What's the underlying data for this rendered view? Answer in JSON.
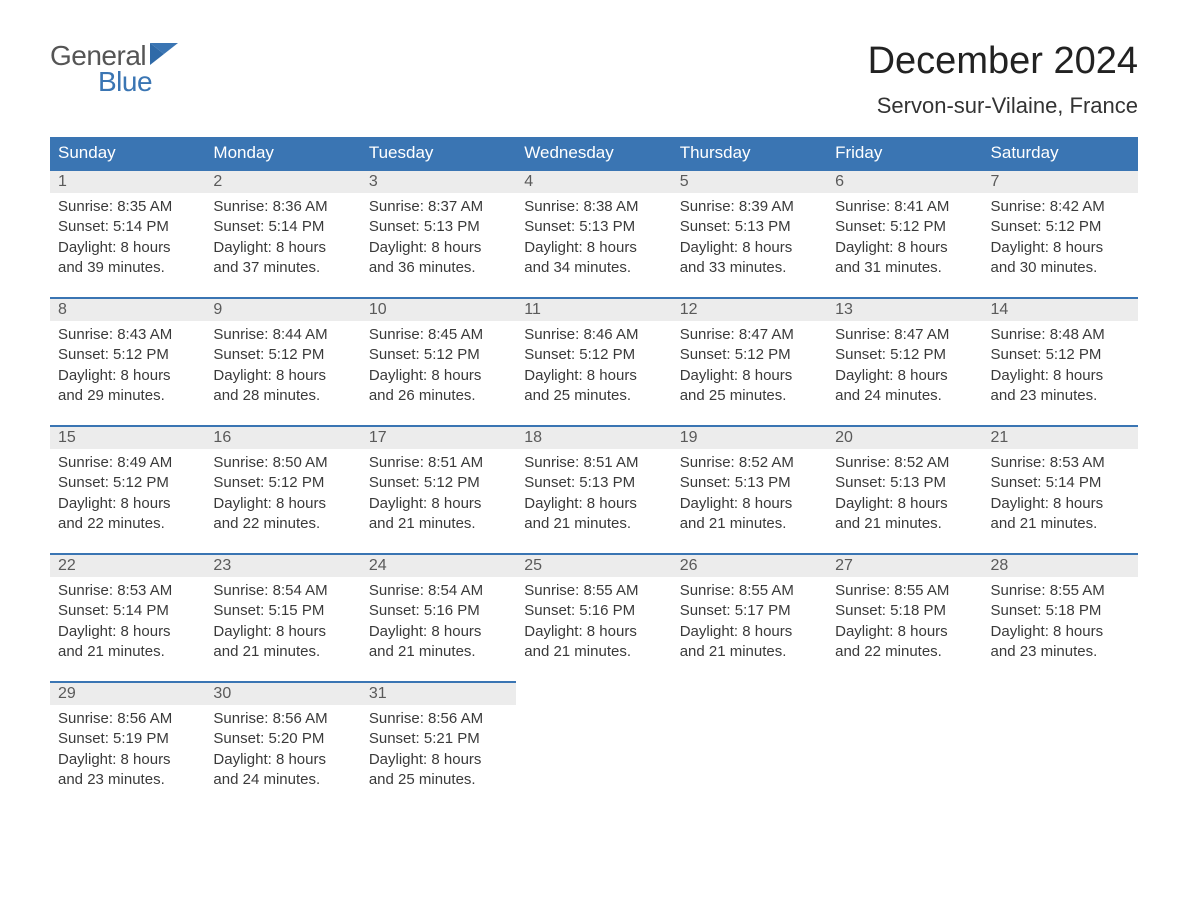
{
  "logo": {
    "line1": "General",
    "line2": "Blue",
    "icon_color": "#3a75b3"
  },
  "title": "December 2024",
  "location": "Servon-sur-Vilaine, France",
  "colors": {
    "header_bg": "#3a75b3",
    "header_text": "#ffffff",
    "daynum_bg": "#ececec",
    "daynum_text": "#5a5a5a",
    "body_text": "#3a3a3a",
    "row_divider": "#3a75b3",
    "page_bg": "#ffffff"
  },
  "typography": {
    "title_fontsize": 38,
    "location_fontsize": 22,
    "header_fontsize": 17,
    "daynum_fontsize": 16,
    "body_fontsize": 15,
    "font_family": "Arial"
  },
  "weekdays": [
    "Sunday",
    "Monday",
    "Tuesday",
    "Wednesday",
    "Thursday",
    "Friday",
    "Saturday"
  ],
  "weeks": [
    [
      {
        "num": "1",
        "sunrise": "8:35 AM",
        "sunset": "5:14 PM",
        "daylight": "8 hours and 39 minutes."
      },
      {
        "num": "2",
        "sunrise": "8:36 AM",
        "sunset": "5:14 PM",
        "daylight": "8 hours and 37 minutes."
      },
      {
        "num": "3",
        "sunrise": "8:37 AM",
        "sunset": "5:13 PM",
        "daylight": "8 hours and 36 minutes."
      },
      {
        "num": "4",
        "sunrise": "8:38 AM",
        "sunset": "5:13 PM",
        "daylight": "8 hours and 34 minutes."
      },
      {
        "num": "5",
        "sunrise": "8:39 AM",
        "sunset": "5:13 PM",
        "daylight": "8 hours and 33 minutes."
      },
      {
        "num": "6",
        "sunrise": "8:41 AM",
        "sunset": "5:12 PM",
        "daylight": "8 hours and 31 minutes."
      },
      {
        "num": "7",
        "sunrise": "8:42 AM",
        "sunset": "5:12 PM",
        "daylight": "8 hours and 30 minutes."
      }
    ],
    [
      {
        "num": "8",
        "sunrise": "8:43 AM",
        "sunset": "5:12 PM",
        "daylight": "8 hours and 29 minutes."
      },
      {
        "num": "9",
        "sunrise": "8:44 AM",
        "sunset": "5:12 PM",
        "daylight": "8 hours and 28 minutes."
      },
      {
        "num": "10",
        "sunrise": "8:45 AM",
        "sunset": "5:12 PM",
        "daylight": "8 hours and 26 minutes."
      },
      {
        "num": "11",
        "sunrise": "8:46 AM",
        "sunset": "5:12 PM",
        "daylight": "8 hours and 25 minutes."
      },
      {
        "num": "12",
        "sunrise": "8:47 AM",
        "sunset": "5:12 PM",
        "daylight": "8 hours and 25 minutes."
      },
      {
        "num": "13",
        "sunrise": "8:47 AM",
        "sunset": "5:12 PM",
        "daylight": "8 hours and 24 minutes."
      },
      {
        "num": "14",
        "sunrise": "8:48 AM",
        "sunset": "5:12 PM",
        "daylight": "8 hours and 23 minutes."
      }
    ],
    [
      {
        "num": "15",
        "sunrise": "8:49 AM",
        "sunset": "5:12 PM",
        "daylight": "8 hours and 22 minutes."
      },
      {
        "num": "16",
        "sunrise": "8:50 AM",
        "sunset": "5:12 PM",
        "daylight": "8 hours and 22 minutes."
      },
      {
        "num": "17",
        "sunrise": "8:51 AM",
        "sunset": "5:12 PM",
        "daylight": "8 hours and 21 minutes."
      },
      {
        "num": "18",
        "sunrise": "8:51 AM",
        "sunset": "5:13 PM",
        "daylight": "8 hours and 21 minutes."
      },
      {
        "num": "19",
        "sunrise": "8:52 AM",
        "sunset": "5:13 PM",
        "daylight": "8 hours and 21 minutes."
      },
      {
        "num": "20",
        "sunrise": "8:52 AM",
        "sunset": "5:13 PM",
        "daylight": "8 hours and 21 minutes."
      },
      {
        "num": "21",
        "sunrise": "8:53 AM",
        "sunset": "5:14 PM",
        "daylight": "8 hours and 21 minutes."
      }
    ],
    [
      {
        "num": "22",
        "sunrise": "8:53 AM",
        "sunset": "5:14 PM",
        "daylight": "8 hours and 21 minutes."
      },
      {
        "num": "23",
        "sunrise": "8:54 AM",
        "sunset": "5:15 PM",
        "daylight": "8 hours and 21 minutes."
      },
      {
        "num": "24",
        "sunrise": "8:54 AM",
        "sunset": "5:16 PM",
        "daylight": "8 hours and 21 minutes."
      },
      {
        "num": "25",
        "sunrise": "8:55 AM",
        "sunset": "5:16 PM",
        "daylight": "8 hours and 21 minutes."
      },
      {
        "num": "26",
        "sunrise": "8:55 AM",
        "sunset": "5:17 PM",
        "daylight": "8 hours and 21 minutes."
      },
      {
        "num": "27",
        "sunrise": "8:55 AM",
        "sunset": "5:18 PM",
        "daylight": "8 hours and 22 minutes."
      },
      {
        "num": "28",
        "sunrise": "8:55 AM",
        "sunset": "5:18 PM",
        "daylight": "8 hours and 23 minutes."
      }
    ],
    [
      {
        "num": "29",
        "sunrise": "8:56 AM",
        "sunset": "5:19 PM",
        "daylight": "8 hours and 23 minutes."
      },
      {
        "num": "30",
        "sunrise": "8:56 AM",
        "sunset": "5:20 PM",
        "daylight": "8 hours and 24 minutes."
      },
      {
        "num": "31",
        "sunrise": "8:56 AM",
        "sunset": "5:21 PM",
        "daylight": "8 hours and 25 minutes."
      },
      null,
      null,
      null,
      null
    ]
  ],
  "labels": {
    "sunrise": "Sunrise:",
    "sunset": "Sunset:",
    "daylight": "Daylight:"
  }
}
